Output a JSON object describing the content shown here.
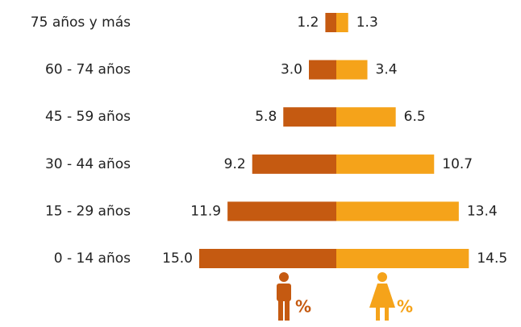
{
  "chart_data": {
    "type": "pyramid",
    "categories": [
      "75 años y más",
      "60 - 74  años",
      "45 - 59  años",
      "30 - 44  años",
      "15 - 29  años",
      "0 - 14  años"
    ],
    "series": [
      {
        "legend_label": "%",
        "color": "#c55a11",
        "side": "left",
        "values": [
          1.2,
          3.0,
          5.8,
          9.2,
          11.9,
          15.0
        ],
        "value_labels": [
          "1.2",
          "3.0",
          "5.8",
          "9.2",
          "11.9",
          "15.0"
        ]
      },
      {
        "legend_label": "%",
        "color": "#f5a31a",
        "side": "right",
        "values": [
          1.3,
          3.4,
          6.5,
          10.7,
          13.4,
          14.5
        ],
        "value_labels": [
          "1.3",
          "3.4",
          "6.5",
          "10.7",
          "13.4",
          "14.5"
        ]
      }
    ]
  }
}
